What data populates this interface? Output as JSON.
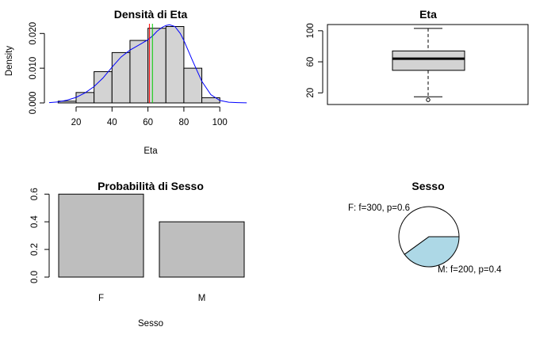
{
  "chart_data": [
    {
      "type": "bar",
      "subtype": "histogram-with-density",
      "title": "Densità di Eta",
      "xlabel": "Eta",
      "ylabel": "Density",
      "x_ticks": [
        20,
        40,
        60,
        80,
        100
      ],
      "y_ticks": [
        "0.000",
        "0.010",
        "0.020"
      ],
      "xlim": [
        5,
        118
      ],
      "ylim": [
        0,
        0.0228
      ],
      "bins": [
        {
          "from": 10,
          "to": 20,
          "density": 0.0005
        },
        {
          "from": 20,
          "to": 30,
          "density": 0.003
        },
        {
          "from": 30,
          "to": 40,
          "density": 0.009
        },
        {
          "from": 40,
          "to": 50,
          "density": 0.0145
        },
        {
          "from": 50,
          "to": 60,
          "density": 0.018
        },
        {
          "from": 60,
          "to": 70,
          "density": 0.0215
        },
        {
          "from": 70,
          "to": 80,
          "density": 0.022
        },
        {
          "from": 80,
          "to": 90,
          "density": 0.01
        },
        {
          "from": 90,
          "to": 100,
          "density": 0.0015
        }
      ],
      "density_curve": {
        "color": "#0000ff",
        "x": [
          5,
          10,
          15,
          20,
          25,
          30,
          35,
          40,
          45,
          50,
          55,
          60,
          63,
          65,
          68,
          70,
          72,
          75,
          78,
          80,
          85,
          90,
          95,
          100,
          105,
          110,
          115
        ],
        "y": [
          0.0001,
          0.0003,
          0.0008,
          0.0016,
          0.0029,
          0.0047,
          0.0072,
          0.0103,
          0.0132,
          0.0152,
          0.0167,
          0.0182,
          0.0195,
          0.0206,
          0.0218,
          0.0223,
          0.0225,
          0.022,
          0.02,
          0.018,
          0.012,
          0.0062,
          0.0024,
          0.0007,
          0.0002,
          0.0001,
          3e-05
        ]
      },
      "reference_lines": [
        {
          "x": 60.8,
          "color": "#ff0000"
        },
        {
          "x": 62.5,
          "color": "#00cc00"
        }
      ],
      "bar_fill": "#d3d3d3"
    },
    {
      "type": "boxplot",
      "title": "Eta",
      "y_ticks": [
        20,
        60,
        100
      ],
      "ylim": [
        5,
        108
      ],
      "min": 15,
      "q1": 49,
      "median": 64,
      "q3": 74,
      "max": 103,
      "outliers": [
        11
      ],
      "box_fill": "#d3d3d3"
    },
    {
      "type": "bar",
      "title": "Probabilità di Sesso",
      "xlabel": "Sesso",
      "categories": [
        "F",
        "M"
      ],
      "values": [
        0.6,
        0.4
      ],
      "y_ticks": [
        "0.0",
        "0.2",
        "0.4",
        "0.6"
      ],
      "ylim": [
        0,
        0.63
      ],
      "bar_fill": "#bebebe"
    },
    {
      "type": "pie",
      "title": "Sesso",
      "slices": [
        {
          "label": "F: f=300, p=0.6",
          "value": 300,
          "color": "#ffffff"
        },
        {
          "label": "M: f=200, p=0.4",
          "value": 200,
          "color": "#add8e6"
        }
      ]
    }
  ]
}
